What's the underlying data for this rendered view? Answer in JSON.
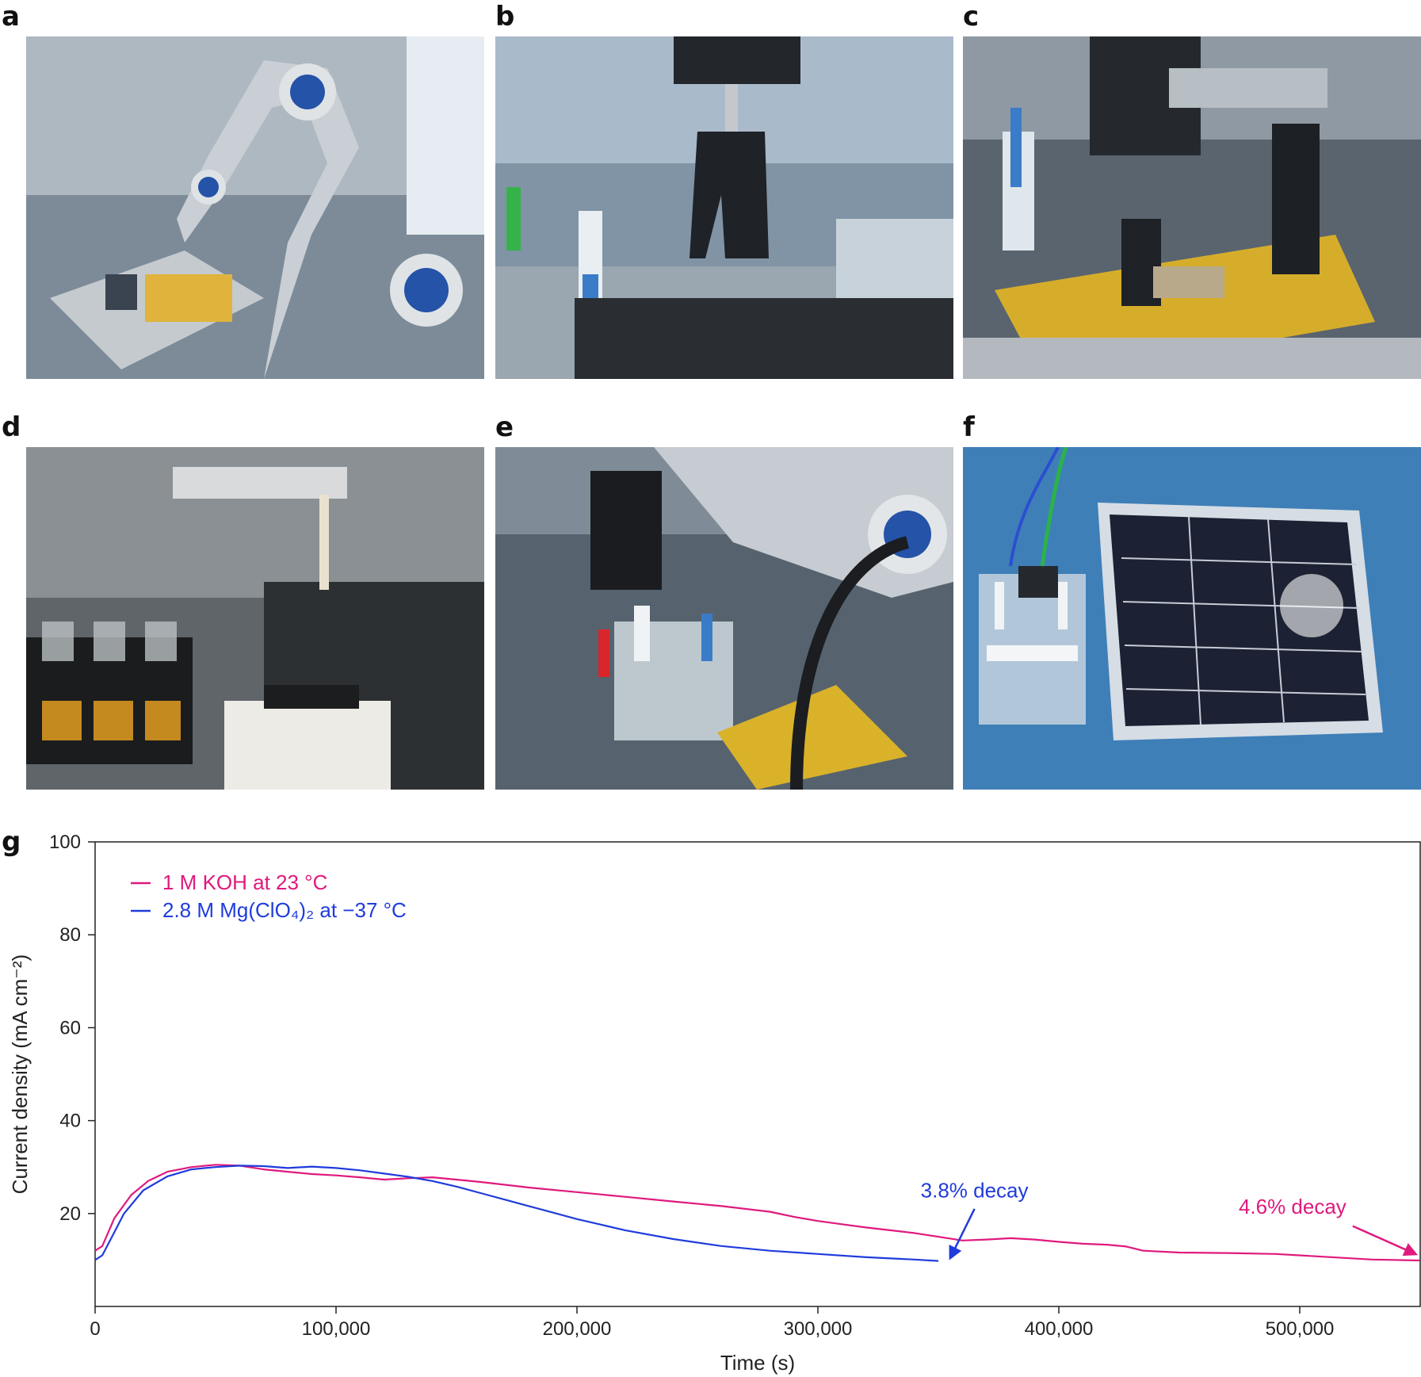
{
  "panels": [
    {
      "letter": "a",
      "photo_colors": [
        "#7a8ea3",
        "#b9c3cb",
        "#2d3948",
        "#e0b33c"
      ]
    },
    {
      "letter": "b",
      "photo_colors": [
        "#6a7f93",
        "#b0bcc6",
        "#222a33",
        "#9fc2d9"
      ]
    },
    {
      "letter": "c",
      "photo_colors": [
        "#4d5864",
        "#a9b0b6",
        "#1c1f23",
        "#d6ad2b"
      ]
    },
    {
      "letter": "d",
      "photo_colors": [
        "#6c7276",
        "#c9cccd",
        "#1e1f20",
        "#c48a20"
      ]
    },
    {
      "letter": "e",
      "photo_colors": [
        "#4c5964",
        "#b7bec5",
        "#17191c",
        "#d9b22a"
      ]
    },
    {
      "letter": "f",
      "photo_colors": [
        "#2f6fa8",
        "#4f8cc4",
        "#1a2136",
        "#cfd7e0"
      ]
    }
  ],
  "chart_label": "g",
  "chart_data": {
    "type": "line",
    "xlabel": "Time (s)",
    "ylabel": "Current density (mA cm⁻²)",
    "xlim": [
      0,
      550000
    ],
    "ylim": [
      0,
      100
    ],
    "xticks": [
      0,
      100000,
      200000,
      300000,
      400000,
      500000
    ],
    "xtick_labels": [
      "0",
      "100,000",
      "200,000",
      "300,000",
      "400,000",
      "500,000"
    ],
    "yticks": [
      20,
      40,
      60,
      80,
      100
    ],
    "ytick_labels": [
      "20",
      "40",
      "60",
      "80",
      "100"
    ],
    "grid": false,
    "legend_position": "top-left",
    "series": [
      {
        "name": "1 M KOH at 23 °C",
        "color": "#e0197d",
        "x": [
          0,
          3000,
          8000,
          15000,
          22000,
          30000,
          40000,
          50000,
          60000,
          70000,
          80000,
          90000,
          100000,
          110000,
          120000,
          130000,
          140000,
          150000,
          160000,
          180000,
          200000,
          220000,
          240000,
          260000,
          280000,
          290000,
          300000,
          310000,
          320000,
          330000,
          340000,
          350000,
          360000,
          370000,
          380000,
          390000,
          400000,
          410000,
          420000,
          428000,
          435000,
          450000,
          470000,
          490000,
          510000,
          530000,
          550000
        ],
        "y": [
          12,
          13,
          19,
          24,
          27,
          29,
          30,
          30.5,
          30.3,
          29.5,
          29,
          28.5,
          28.2,
          27.8,
          27.3,
          27.6,
          27.8,
          27.3,
          26.8,
          25.6,
          24.6,
          23.6,
          22.6,
          21.6,
          20.4,
          19.3,
          18.4,
          17.7,
          17.0,
          16.4,
          15.8,
          15.0,
          14.2,
          14.4,
          14.7,
          14.4,
          13.9,
          13.5,
          13.3,
          12.9,
          12.0,
          11.6,
          11.5,
          11.3,
          10.7,
          10.1,
          9.9
        ]
      },
      {
        "name": "2.8 M Mg(ClO₄)₂ at −37 °C",
        "color": "#1f3cdc",
        "x": [
          0,
          3000,
          7000,
          12000,
          20000,
          30000,
          40000,
          50000,
          60000,
          70000,
          80000,
          90000,
          100000,
          110000,
          120000,
          130000,
          140000,
          150000,
          160000,
          170000,
          180000,
          190000,
          200000,
          220000,
          240000,
          260000,
          280000,
          300000,
          320000,
          340000,
          350000
        ],
        "y": [
          10,
          11,
          15,
          20,
          25,
          28,
          29.5,
          30,
          30.3,
          30.2,
          29.8,
          30.1,
          29.8,
          29.3,
          28.6,
          27.9,
          27.0,
          25.8,
          24.4,
          23.0,
          21.6,
          20.2,
          18.8,
          16.4,
          14.5,
          13.0,
          12.0,
          11.3,
          10.6,
          10.1,
          9.8
        ]
      }
    ],
    "annotations": [
      {
        "text": "3.8% decay",
        "color": "#1f3cdc",
        "x": 365000,
        "y": 23.5,
        "arrow_from": [
          365000,
          21.0
        ],
        "arrow_to": [
          355000,
          10.5
        ]
      },
      {
        "text": "4.6% decay",
        "color": "#e0197d",
        "x": 497000,
        "y": 20,
        "arrow_from": [
          522000,
          17.3
        ],
        "arrow_to": [
          548000,
          11.3
        ]
      }
    ]
  }
}
